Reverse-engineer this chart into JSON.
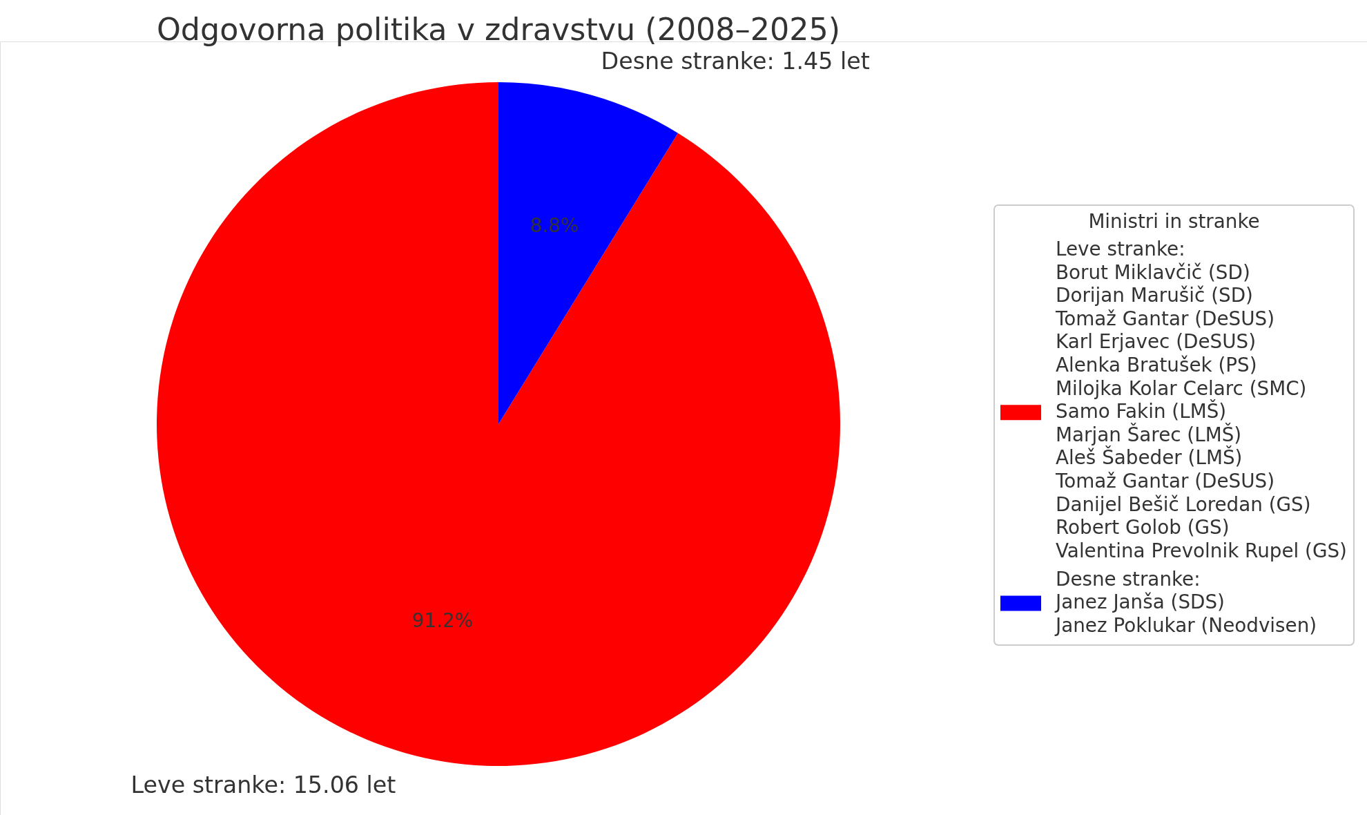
{
  "chart_data": {
    "type": "pie",
    "title": "Odgovorna politika v zdravstvu (2008–2025)",
    "legend_title": "Ministri in stranke",
    "categories": [
      "Leve stranke:\nBorut Miklavčič (SD)\nDorijan Marušič (SD)\nTomaž Gantar (DeSUS)\nKarl Erjavec (DeSUS)\nAlenka Bratušek (PS)\nMilojka Kolar Celarc (SMC)\nSamo Fakin (LMŠ)\nMarjan Šarec (LMŠ)\nAleš Šabeder (LMŠ)\nTomaž Gantar (DeSUS)\nDanijel Bešič Loredan (GS)\nRobert Golob (GS)\nValentina Prevolnik Rupel (GS)",
      "Desne stranke:\nJanez Janša (SDS)\nJanez Poklukar (Neodvisen)"
    ],
    "values": [
      91.2,
      8.8
    ],
    "colors": [
      "#ff0000",
      "#0000ff"
    ],
    "value_labels": [
      "91.2%",
      "8.8%"
    ],
    "annotations": [
      "Leve stranke: 15.06 let",
      "Desne stranke: 1.45 let"
    ],
    "legend": "right"
  }
}
